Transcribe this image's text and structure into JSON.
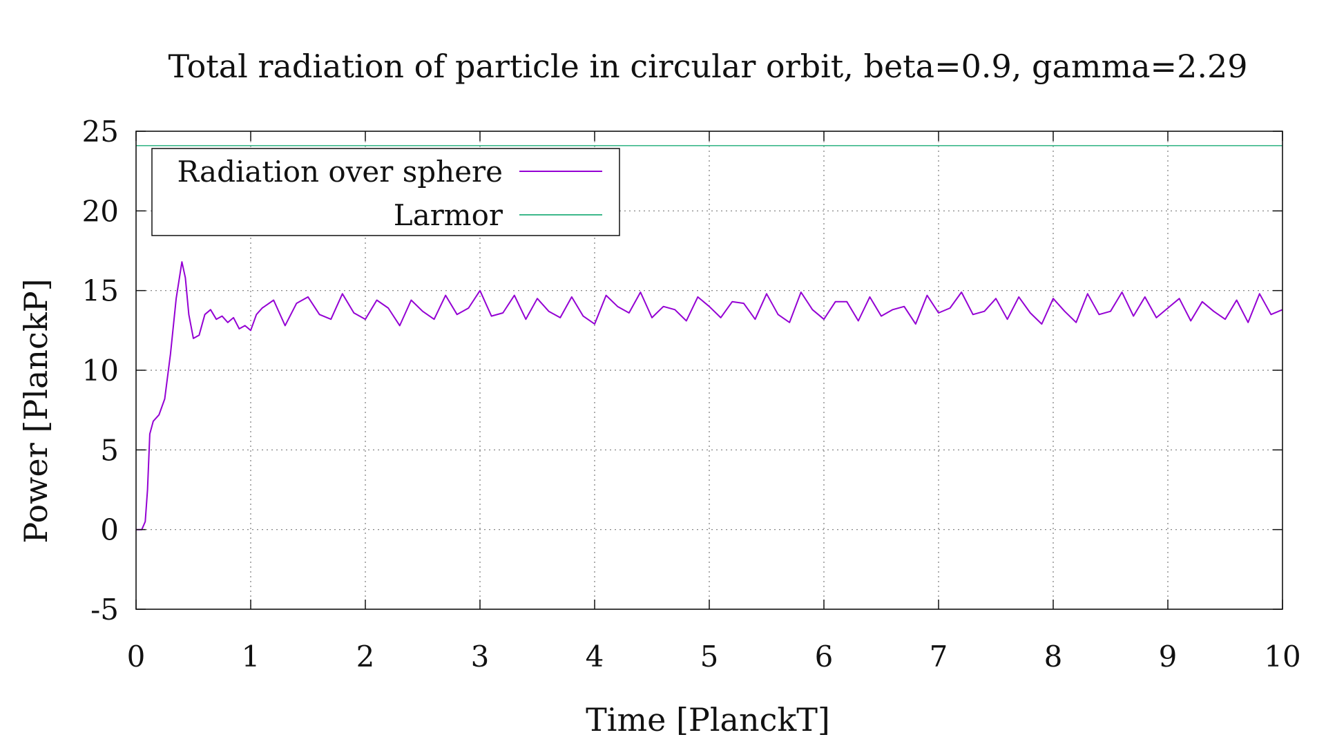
{
  "chart_data": {
    "type": "line",
    "title": "Total radiation of particle in circular orbit, beta=0.9, gamma=2.29",
    "xlabel": "Time [PlanckT]",
    "ylabel": "Power [PlanckP]",
    "xlim": [
      0,
      10
    ],
    "ylim": [
      -5,
      25
    ],
    "x_ticks": [
      "0",
      "1",
      "2",
      "3",
      "4",
      "5",
      "6",
      "7",
      "8",
      "9",
      "10"
    ],
    "y_ticks": [
      "-5",
      "0",
      "5",
      "10",
      "15",
      "20",
      "25"
    ],
    "grid": true,
    "legend_position": "top-left",
    "series": [
      {
        "name": "Radiation over sphere",
        "color": "#9400d3",
        "x": [
          0,
          0.05,
          0.08,
          0.1,
          0.12,
          0.15,
          0.2,
          0.25,
          0.3,
          0.35,
          0.4,
          0.43,
          0.46,
          0.5,
          0.55,
          0.6,
          0.65,
          0.7,
          0.75,
          0.8,
          0.85,
          0.9,
          0.95,
          1.0,
          1.05,
          1.1,
          1.2,
          1.3,
          1.4,
          1.5,
          1.6,
          1.7,
          1.8,
          1.9,
          2.0,
          2.1,
          2.2,
          2.3,
          2.4,
          2.5,
          2.6,
          2.7,
          2.8,
          2.9,
          3.0,
          3.1,
          3.2,
          3.3,
          3.4,
          3.5,
          3.6,
          3.7,
          3.8,
          3.9,
          4.0,
          4.1,
          4.2,
          4.3,
          4.4,
          4.5,
          4.6,
          4.7,
          4.8,
          4.9,
          5.0,
          5.1,
          5.2,
          5.3,
          5.4,
          5.5,
          5.6,
          5.7,
          5.8,
          5.9,
          6.0,
          6.1,
          6.2,
          6.3,
          6.4,
          6.5,
          6.6,
          6.7,
          6.8,
          6.9,
          7.0,
          7.1,
          7.2,
          7.3,
          7.4,
          7.5,
          7.6,
          7.7,
          7.8,
          7.9,
          8.0,
          8.1,
          8.2,
          8.3,
          8.4,
          8.5,
          8.6,
          8.7,
          8.8,
          8.9,
          9.0,
          9.1,
          9.2,
          9.3,
          9.4,
          9.5,
          9.6,
          9.7,
          9.8,
          9.9,
          10.0
        ],
        "y": [
          0,
          0,
          0.5,
          2.5,
          6.0,
          6.8,
          7.2,
          8.2,
          11.0,
          14.5,
          16.8,
          15.8,
          13.5,
          12.0,
          12.2,
          13.5,
          13.8,
          13.2,
          13.4,
          13.0,
          13.3,
          12.6,
          12.8,
          12.5,
          13.5,
          13.9,
          14.4,
          12.8,
          14.2,
          14.6,
          13.5,
          13.2,
          14.8,
          13.6,
          13.2,
          14.4,
          13.9,
          12.8,
          14.4,
          13.7,
          13.2,
          14.7,
          13.5,
          13.9,
          15.0,
          13.4,
          13.6,
          14.7,
          13.2,
          14.5,
          13.7,
          13.3,
          14.6,
          13.4,
          12.9,
          14.7,
          14.0,
          13.6,
          14.9,
          13.3,
          14.0,
          13.8,
          13.1,
          14.6,
          14.0,
          13.3,
          14.3,
          14.2,
          13.2,
          14.8,
          13.5,
          13.0,
          14.9,
          13.8,
          13.2,
          14.3,
          14.3,
          13.1,
          14.6,
          13.4,
          13.8,
          14.0,
          12.9,
          14.7,
          13.6,
          13.9,
          14.9,
          13.5,
          13.7,
          14.5,
          13.2,
          14.6,
          13.6,
          12.9,
          14.5,
          13.7,
          13.0,
          14.8,
          13.5,
          13.7,
          14.9,
          13.4,
          14.6,
          13.3,
          13.9,
          14.5,
          13.1,
          14.3,
          13.7,
          13.2,
          14.4,
          13.0,
          14.8,
          13.5,
          13.8
        ]
      },
      {
        "name": "Larmor",
        "color": "#3cb88a",
        "x": [
          0,
          10
        ],
        "y": [
          24.1,
          24.1
        ]
      }
    ]
  }
}
